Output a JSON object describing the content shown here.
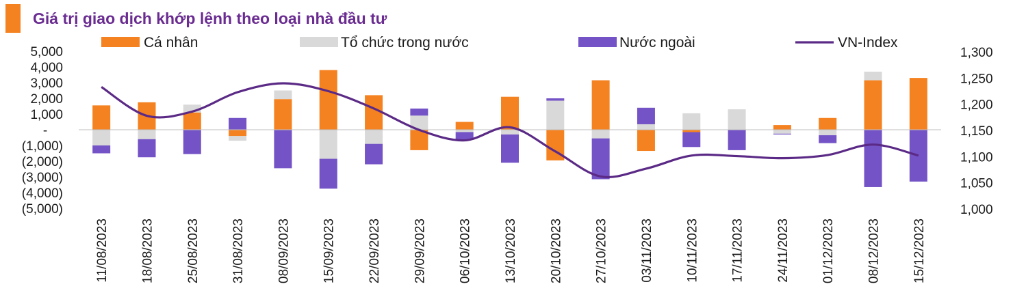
{
  "chart_data": {
    "type": "bar",
    "title": "Giá trị giao dịch khớp lệnh theo loại nhà đầu tư",
    "categories": [
      "11/08/2023",
      "18/08/2023",
      "25/08/2023",
      "31/08/2023",
      "08/09/2023",
      "15/09/2023",
      "22/09/2023",
      "29/09/2023",
      "06/10/2023",
      "13/10/2023",
      "20/10/2023",
      "27/10/2023",
      "03/11/2023",
      "10/11/2023",
      "17/11/2023",
      "24/11/2023",
      "01/12/2023",
      "08/12/2023",
      "15/12/2023"
    ],
    "series": [
      {
        "name": "Cá nhân",
        "type": "bar",
        "color": "#F58220",
        "values": [
          1550,
          1750,
          1100,
          -400,
          1950,
          3800,
          2200,
          -1300,
          500,
          2100,
          -1950,
          3150,
          -1350,
          -150,
          0,
          300,
          750,
          3150,
          3300
        ]
      },
      {
        "name": "Tổ chức trong nước",
        "type": "bar",
        "color": "#D9D9D9",
        "values": [
          -1000,
          -600,
          500,
          -300,
          550,
          -1850,
          -900,
          900,
          -150,
          -300,
          1850,
          -550,
          350,
          1050,
          1300,
          -250,
          -350,
          550,
          0
        ]
      },
      {
        "name": "Nước ngoài",
        "type": "bar",
        "color": "#7453C6",
        "values": [
          -500,
          -1150,
          -1550,
          750,
          -2450,
          -1900,
          -1300,
          450,
          -500,
          -1800,
          150,
          -2600,
          1050,
          -950,
          -1300,
          -50,
          -500,
          -3650,
          -3300
        ]
      },
      {
        "name": "VN-Index",
        "type": "line",
        "color": "#5B2A86",
        "axis": "right",
        "values": [
          1233,
          1178,
          1186,
          1223,
          1240,
          1225,
          1192,
          1151,
          1131,
          1156,
          1110,
          1062,
          1077,
          1102,
          1101,
          1097,
          1103,
          1123,
          1102
        ]
      }
    ],
    "y_left": {
      "min": -5000,
      "max": 5000,
      "step": 1000,
      "ticks": [
        "(5,000)",
        "(4,000)",
        "(3,000)",
        "(2,000)",
        "(1,000)",
        "-",
        "1,000",
        "2,000",
        "3,000",
        "4,000",
        "5,000"
      ]
    },
    "y_right": {
      "min": 1000,
      "max": 1300,
      "step": 50,
      "ticks": [
        "1,000",
        "1,050",
        "1,100",
        "1,150",
        "1,200",
        "1,250",
        "1,300"
      ]
    },
    "legend_position": "top",
    "grid": false
  }
}
